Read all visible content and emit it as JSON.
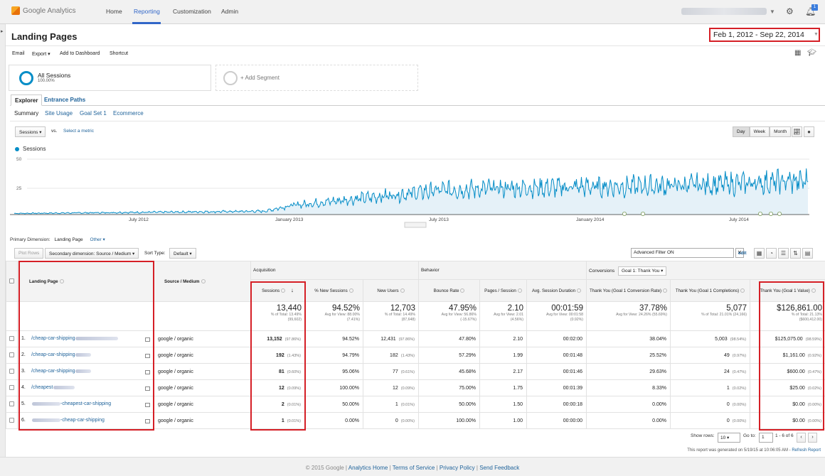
{
  "app": {
    "logo_text": "Google Analytics"
  },
  "nav": [
    {
      "label": "Home"
    },
    {
      "label": "Reporting"
    },
    {
      "label": "Customization"
    },
    {
      "label": "Admin"
    }
  ],
  "notifications_count": "1",
  "page": {
    "title": "Landing Pages",
    "date_range": "Feb 1, 2012 - Sep 22, 2014"
  },
  "toolbar": {
    "email": "Email",
    "export": "Export ▾",
    "add_to_dashboard": "Add to Dashboard",
    "shortcut": "Shortcut"
  },
  "segments": {
    "all_sessions": "All Sessions",
    "all_sessions_pct": "100.00%",
    "add_segment": "+ Add Segment"
  },
  "tabs": [
    "Explorer",
    "Entrance Paths"
  ],
  "subtabs": [
    "Summary",
    "Site Usage",
    "Goal Set 1",
    "Ecommerce"
  ],
  "chart_controls": {
    "metric": "Sessions",
    "vs": "vs.",
    "select_metric": "Select a metric",
    "periods": [
      "Day",
      "Week",
      "Month"
    ]
  },
  "chart_data": {
    "type": "area",
    "series": [
      {
        "name": "Sessions",
        "color": "#058dc7"
      }
    ],
    "y_ticks": [
      "50",
      "25"
    ],
    "x_ticks": [
      "July 2012",
      "January 2013",
      "July 2013",
      "January 2014",
      "July 2014"
    ],
    "ylim": [
      0,
      50
    ],
    "x_range": [
      "Feb 1, 2012",
      "Sep 22, 2014"
    ],
    "trend_points": [
      {
        "x": "2012-02",
        "y": 1
      },
      {
        "x": "2012-07",
        "y": 2
      },
      {
        "x": "2012-12",
        "y": 3
      },
      {
        "x": "2013-01",
        "y": 8
      },
      {
        "x": "2013-04",
        "y": 15
      },
      {
        "x": "2013-07",
        "y": 22
      },
      {
        "x": "2013-10",
        "y": 24
      },
      {
        "x": "2014-01",
        "y": 25
      },
      {
        "x": "2014-04",
        "y": 26
      },
      {
        "x": "2014-07",
        "y": 28
      },
      {
        "x": "2014-09",
        "y": 30
      }
    ]
  },
  "primary_dimension": {
    "label": "Primary Dimension:",
    "value": "Landing Page",
    "other": "Other ▾"
  },
  "table_toolbar": {
    "plot_rows": "Plot Rows",
    "secondary_dimension": "Secondary dimension: Source / Medium ▾",
    "sort_type_label": "Sort Type:",
    "sort_type": "Default ▾",
    "advanced_filter": "Advanced Filter ON",
    "edit": "edit"
  },
  "table": {
    "groups": {
      "acquisition": "Acquisition",
      "behavior": "Behavior",
      "conversions": "Conversions",
      "goal_select": "Goal 1: Thank You ▾"
    },
    "headers": [
      "Landing Page",
      "Source / Medium",
      "Sessions",
      "% New Sessions",
      "New Users",
      "Bounce Rate",
      "Pages / Session",
      "Avg. Session Duration",
      "Thank You (Goal 1 Conversion Rate)",
      "Thank You (Goal 1 Completions)",
      "Thank You (Goal 1 Value)"
    ],
    "totals": [
      {
        "main": "13,440",
        "sub1": "% of Total: 13.49%",
        "sub2": "(99,602)"
      },
      {
        "main": "94.52%",
        "sub1": "Avg for View: 88.00%",
        "sub2": "(7.41%)"
      },
      {
        "main": "12,703",
        "sub1": "% of Total: 14.49%",
        "sub2": "(87,648)"
      },
      {
        "main": "47.95%",
        "sub1": "Avg for View: 56.86%",
        "sub2": "(-15.67%)"
      },
      {
        "main": "2.10",
        "sub1": "Avg for View: 2.01",
        "sub2": "(4.56%)"
      },
      {
        "main": "00:01:59",
        "sub1": "Avg for View: 00:01:58",
        "sub2": "(0.92%)"
      },
      {
        "main": "37.78%",
        "sub1": "Avg for View: 24.26% (55.69%)",
        "sub2": ""
      },
      {
        "main": "5,077",
        "sub1": "% of Total: 21.01% (24,166)",
        "sub2": ""
      },
      {
        "main": "$126,861.00",
        "sub1": "% of Total: 21.13%",
        "sub2": "($600,412.00)"
      }
    ],
    "rows": [
      {
        "n": "1.",
        "page": "/cheap-car-shipping",
        "src": "google / organic",
        "sessions": "13,152",
        "sessions_pct": "(97.86%)",
        "new_sess": "94.52%",
        "new_users": "12,431",
        "new_users_pct": "(97.86%)",
        "bounce": "47.80%",
        "pps": "2.10",
        "dur": "00:02:00",
        "conv": "38.04%",
        "comp": "5,003",
        "comp_pct": "(98.54%)",
        "value": "$125,075.00",
        "value_pct": "(98.59%)"
      },
      {
        "n": "2.",
        "page": "/cheap-car-shipping",
        "src": "google / organic",
        "sessions": "192",
        "sessions_pct": "(1.43%)",
        "new_sess": "94.79%",
        "new_users": "182",
        "new_users_pct": "(1.43%)",
        "bounce": "57.29%",
        "pps": "1.99",
        "dur": "00:01:48",
        "conv": "25.52%",
        "comp": "49",
        "comp_pct": "(0.97%)",
        "value": "$1,161.00",
        "value_pct": "(0.92%)"
      },
      {
        "n": "3.",
        "page": "/cheap-car-shipping",
        "src": "google / organic",
        "sessions": "81",
        "sessions_pct": "(0.60%)",
        "new_sess": "95.06%",
        "new_users": "77",
        "new_users_pct": "(0.61%)",
        "bounce": "45.68%",
        "pps": "2.17",
        "dur": "00:01:46",
        "conv": "29.63%",
        "comp": "24",
        "comp_pct": "(0.47%)",
        "value": "$600.00",
        "value_pct": "(0.47%)"
      },
      {
        "n": "4.",
        "page": "/cheapest",
        "src": "google / organic",
        "sessions": "12",
        "sessions_pct": "(0.09%)",
        "new_sess": "100.00%",
        "new_users": "12",
        "new_users_pct": "(0.09%)",
        "bounce": "75.00%",
        "pps": "1.75",
        "dur": "00:01:39",
        "conv": "8.33%",
        "comp": "1",
        "comp_pct": "(0.02%)",
        "value": "$25.00",
        "value_pct": "(0.02%)"
      },
      {
        "n": "5.",
        "page": "-cheapest-car-shipping",
        "src": "google / organic",
        "sessions": "2",
        "sessions_pct": "(0.01%)",
        "new_sess": "50.00%",
        "new_users": "1",
        "new_users_pct": "(0.01%)",
        "bounce": "50.00%",
        "pps": "1.50",
        "dur": "00:00:18",
        "conv": "0.00%",
        "comp": "0",
        "comp_pct": "(0.00%)",
        "value": "$0.00",
        "value_pct": "(0.00%)"
      },
      {
        "n": "6.",
        "page": "-cheap-car-shipping",
        "src": "google / organic",
        "sessions": "1",
        "sessions_pct": "(0.01%)",
        "new_sess": "0.00%",
        "new_users": "0",
        "new_users_pct": "(0.00%)",
        "bounce": "100.00%",
        "pps": "1.00",
        "dur": "00:00:00",
        "conv": "0.00%",
        "comp": "0",
        "comp_pct": "(0.00%)",
        "value": "$0.00",
        "value_pct": "(0.00%)"
      }
    ]
  },
  "pager": {
    "show_rows_label": "Show rows:",
    "show_rows": "10",
    "goto_label": "Go to:",
    "goto": "1",
    "range": "1 - 6 of 6"
  },
  "generated": {
    "text": "This report was generated on 5/19/15 at 10:06:05 AM -",
    "refresh": "Refresh Report"
  },
  "footer": {
    "copyright": "© 2015 Google",
    "links": [
      "Analytics Home",
      "Terms of Service",
      "Privacy Policy",
      "Send Feedback"
    ]
  }
}
